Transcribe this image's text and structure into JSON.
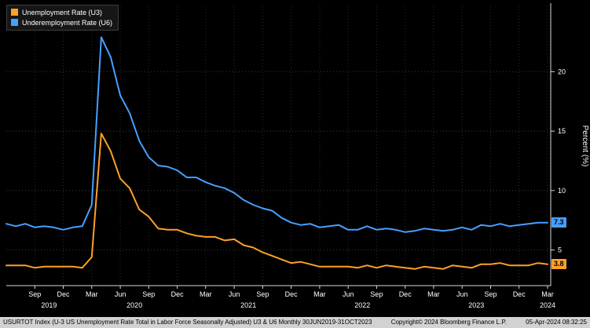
{
  "accent_colors": {
    "u3_orange": "#FFA028",
    "u6_blue": "#46A0FF",
    "axis": "#d8d8d8",
    "grid": "#3c3c3c"
  },
  "legend": {
    "items": [
      {
        "label": "Unemployment Rate (U3)",
        "color": "#FFA028"
      },
      {
        "label": "Underemployment Rate (U6)",
        "color": "#46A0FF"
      }
    ]
  },
  "footer": {
    "left": "USURTOT Index (U-3 US Unemployment Rate Total in Labor Force Seasonally Adjusted) U3 & U6  Monthly 30JUN2019-31OCT2023",
    "center": "Copyright© 2024 Bloomberg Finance L.P.",
    "right": "05-Apr-2024 08:32:25"
  },
  "chart_data": {
    "type": "line",
    "title": "",
    "xlabel": "",
    "ylabel": "Percent (%)",
    "ylim": [
      2,
      25.5
    ],
    "y_ticks": [
      5,
      10,
      15,
      20
    ],
    "grid": true,
    "legend_position": "top-left",
    "x_months_start": "2019-06",
    "x_months_end": "2024-03",
    "x_ticks": [
      {
        "index": 3,
        "label": "Sep"
      },
      {
        "index": 6,
        "label": "Dec"
      },
      {
        "index": 9,
        "label": "Mar"
      },
      {
        "index": 12,
        "label": "Jun"
      },
      {
        "index": 15,
        "label": "Sep"
      },
      {
        "index": 18,
        "label": "Dec"
      },
      {
        "index": 21,
        "label": "Mar"
      },
      {
        "index": 24,
        "label": "Jun"
      },
      {
        "index": 27,
        "label": "Sep"
      },
      {
        "index": 30,
        "label": "Dec"
      },
      {
        "index": 33,
        "label": "Mar"
      },
      {
        "index": 36,
        "label": "Jun"
      },
      {
        "index": 39,
        "label": "Sep"
      },
      {
        "index": 42,
        "label": "Dec"
      },
      {
        "index": 45,
        "label": "Mar"
      },
      {
        "index": 48,
        "label": "Jun"
      },
      {
        "index": 51,
        "label": "Sep"
      },
      {
        "index": 54,
        "label": "Dec"
      },
      {
        "index": 57,
        "label": "Mar"
      }
    ],
    "x_years": [
      {
        "label": "2019",
        "center_index": 4.5
      },
      {
        "label": "2020",
        "center_index": 13.5
      },
      {
        "label": "2021",
        "center_index": 25.5
      },
      {
        "label": "2022",
        "center_index": 37.5
      },
      {
        "label": "2023",
        "center_index": 49.5
      },
      {
        "label": "2024",
        "center_index": 57
      }
    ],
    "series": [
      {
        "name": "Unemployment Rate (U3)",
        "color": "#FFA028",
        "values": [
          3.7,
          3.7,
          3.7,
          3.5,
          3.6,
          3.6,
          3.6,
          3.6,
          3.5,
          4.4,
          14.8,
          13.3,
          11.0,
          10.2,
          8.4,
          7.8,
          6.8,
          6.7,
          6.7,
          6.4,
          6.2,
          6.1,
          6.1,
          5.8,
          5.9,
          5.4,
          5.2,
          4.8,
          4.5,
          4.2,
          3.9,
          4.0,
          3.8,
          3.6,
          3.6,
          3.6,
          3.6,
          3.5,
          3.7,
          3.5,
          3.7,
          3.6,
          3.5,
          3.4,
          3.6,
          3.5,
          3.4,
          3.7,
          3.6,
          3.5,
          3.8,
          3.8,
          3.9,
          3.7,
          3.7,
          3.7,
          3.9,
          3.8
        ]
      },
      {
        "name": "Underemployment Rate (U6)",
        "color": "#46A0FF",
        "values": [
          7.2,
          7.0,
          7.2,
          6.9,
          7.0,
          6.9,
          6.7,
          6.9,
          7.0,
          8.8,
          22.9,
          21.2,
          18.0,
          16.5,
          14.2,
          12.8,
          12.1,
          12.0,
          11.7,
          11.1,
          11.1,
          10.7,
          10.4,
          10.2,
          9.8,
          9.2,
          8.8,
          8.5,
          8.3,
          7.7,
          7.3,
          7.1,
          7.2,
          6.9,
          7.0,
          7.1,
          6.7,
          6.7,
          7.0,
          6.7,
          6.8,
          6.7,
          6.5,
          6.6,
          6.8,
          6.7,
          6.6,
          6.7,
          6.9,
          6.7,
          7.1,
          7.0,
          7.2,
          7.0,
          7.1,
          7.2,
          7.3,
          7.3
        ]
      }
    ],
    "last_value_labels": {
      "u3": "3.8",
      "u6": "7.3"
    }
  }
}
